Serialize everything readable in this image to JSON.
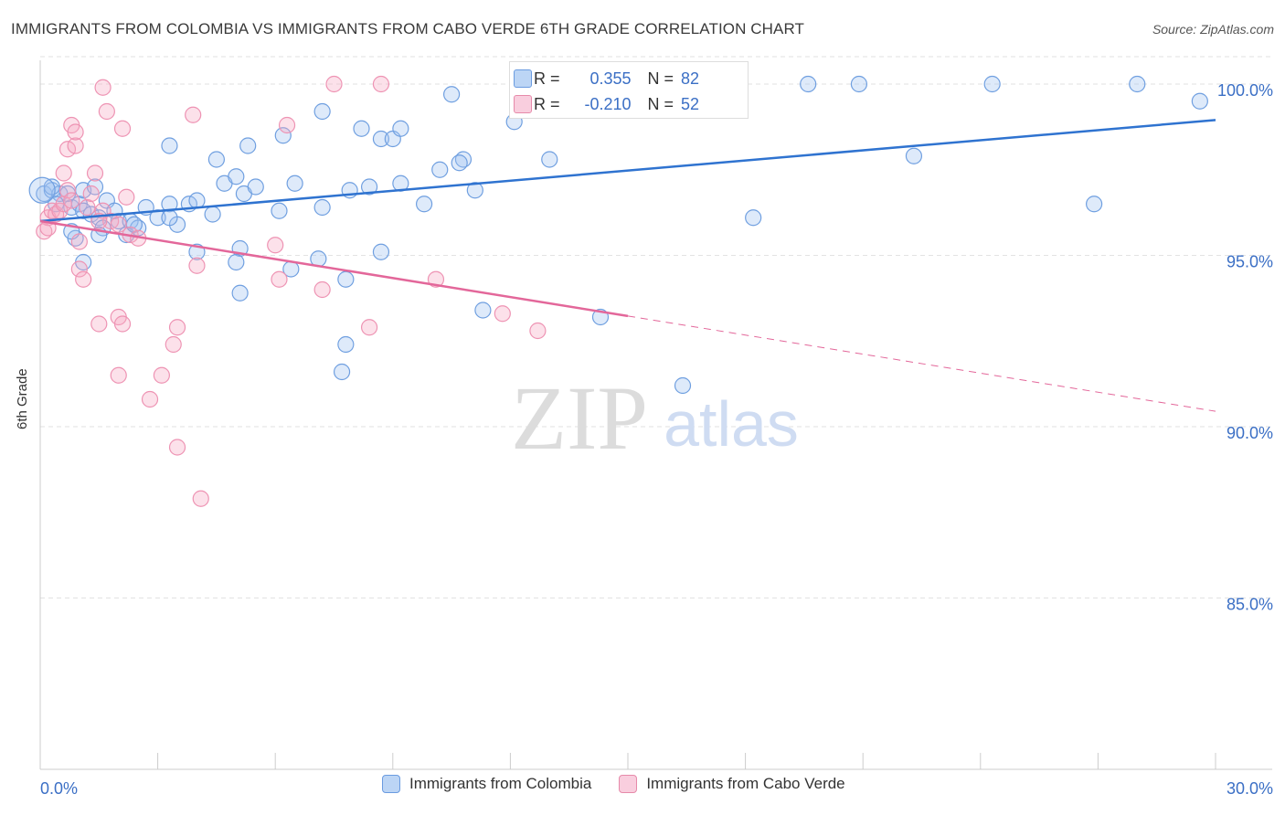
{
  "title": "IMMIGRANTS FROM COLOMBIA VS IMMIGRANTS FROM CABO VERDE 6TH GRADE CORRELATION CHART",
  "source": "Source: ZipAtlas.com",
  "watermark": {
    "zip": "ZIP",
    "atlas": "atlas"
  },
  "stats": [
    {
      "r_label": "R =",
      "r_value": "0.355",
      "n_label": "N =",
      "n_value": "82",
      "color": "#a9c8f0",
      "border": "#6a9be0"
    },
    {
      "r_label": "R =",
      "r_value": "-0.210",
      "n_label": "N =",
      "n_value": "52",
      "color": "#f7bfd2",
      "border": "#e68aaa"
    }
  ],
  "colors": {
    "colombia_fill": "rgba(160,195,240,0.35)",
    "colombia_stroke": "#6f9fe0",
    "colombia_line": "#2f73d0",
    "caboverde_fill": "rgba(245,170,195,0.35)",
    "caboverde_stroke": "#ee93b3",
    "caboverde_line": "#e3679a",
    "axis_text": "#3b6fc5",
    "grid": "#e2e2e2"
  },
  "chart_data": {
    "type": "scatter",
    "title": "IMMIGRANTS FROM COLOMBIA VS IMMIGRANTS FROM CABO VERDE 6TH GRADE CORRELATION CHART",
    "xlabel": "",
    "ylabel": "6th Grade",
    "xlim": [
      0,
      30
    ],
    "ylim": [
      80.0,
      100.8
    ],
    "x_tick_labels": [
      "0.0%",
      "30.0%"
    ],
    "y_ticks": [
      85.0,
      90.0,
      95.0,
      100.0
    ],
    "y_tick_labels": [
      "85.0%",
      "90.0%",
      "95.0%",
      "100.0%"
    ],
    "grid": true,
    "legend_position": "bottom",
    "series": [
      {
        "name": "Immigrants from Colombia",
        "trend": {
          "x": [
            0,
            30
          ],
          "y": [
            96.0,
            98.95
          ]
        },
        "points": [
          [
            0.1,
            96.8
          ],
          [
            0.3,
            96.9
          ],
          [
            0.5,
            96.8
          ],
          [
            0.4,
            96.5
          ],
          [
            0.8,
            96.4
          ],
          [
            1.0,
            96.5
          ],
          [
            1.1,
            96.3
          ],
          [
            0.9,
            95.5
          ],
          [
            1.3,
            96.2
          ],
          [
            1.5,
            96.1
          ],
          [
            1.6,
            95.8
          ],
          [
            1.7,
            96.6
          ],
          [
            2.0,
            96.0
          ],
          [
            2.3,
            96.0
          ],
          [
            2.5,
            95.8
          ],
          [
            2.7,
            96.4
          ],
          [
            3.0,
            96.1
          ],
          [
            3.3,
            96.5
          ],
          [
            3.5,
            95.9
          ],
          [
            3.8,
            96.5
          ],
          [
            4.0,
            96.6
          ],
          [
            4.4,
            96.2
          ],
          [
            4.7,
            97.1
          ],
          [
            5.0,
            97.3
          ],
          [
            5.2,
            96.8
          ],
          [
            5.5,
            97.0
          ],
          [
            6.1,
            96.3
          ],
          [
            6.5,
            97.1
          ],
          [
            7.2,
            96.4
          ],
          [
            7.9,
            96.9
          ],
          [
            8.4,
            97.0
          ],
          [
            9.2,
            97.1
          ],
          [
            9.8,
            96.5
          ],
          [
            11.1,
            96.9
          ],
          [
            10.8,
            97.8
          ],
          [
            13.0,
            97.8
          ],
          [
            3.3,
            98.2
          ],
          [
            5.3,
            98.2
          ],
          [
            4.5,
            97.8
          ],
          [
            6.2,
            98.5
          ],
          [
            8.2,
            98.7
          ],
          [
            8.7,
            98.4
          ],
          [
            9.0,
            98.4
          ],
          [
            9.2,
            98.7
          ],
          [
            10.2,
            97.5
          ],
          [
            10.7,
            97.7
          ],
          [
            7.2,
            99.2
          ],
          [
            10.5,
            99.7
          ],
          [
            12.1,
            98.9
          ],
          [
            13.9,
            100.0
          ],
          [
            19.6,
            100.0
          ],
          [
            20.9,
            100.0
          ],
          [
            24.3,
            100.0
          ],
          [
            28.0,
            100.0
          ],
          [
            29.6,
            99.5
          ],
          [
            22.3,
            97.9
          ],
          [
            26.9,
            96.5
          ],
          [
            18.2,
            96.1
          ],
          [
            1.1,
            96.9
          ],
          [
            1.4,
            97.0
          ],
          [
            0.8,
            95.7
          ],
          [
            1.5,
            95.6
          ],
          [
            2.2,
            95.6
          ],
          [
            2.4,
            95.9
          ],
          [
            4.0,
            95.1
          ],
          [
            5.1,
            95.2
          ],
          [
            8.7,
            95.1
          ],
          [
            7.1,
            94.9
          ],
          [
            6.4,
            94.6
          ],
          [
            7.8,
            94.3
          ],
          [
            1.1,
            94.8
          ],
          [
            5.0,
            94.8
          ],
          [
            5.1,
            93.9
          ],
          [
            11.3,
            93.4
          ],
          [
            14.3,
            93.2
          ],
          [
            7.8,
            92.4
          ],
          [
            7.7,
            91.6
          ],
          [
            16.4,
            91.2
          ],
          [
            0.7,
            96.8
          ],
          [
            1.9,
            96.3
          ],
          [
            3.3,
            96.1
          ],
          [
            0.3,
            97.0
          ]
        ]
      },
      {
        "name": "Immigrants from Cabo Verde",
        "trend": {
          "x": [
            0,
            15.0
          ],
          "y": [
            96.0,
            93.23
          ]
        },
        "trend_dashed": {
          "x": [
            15.0,
            30
          ],
          "y": [
            93.23,
            90.45
          ]
        },
        "points": [
          [
            0.1,
            95.7
          ],
          [
            0.2,
            96.1
          ],
          [
            0.3,
            96.3
          ],
          [
            0.4,
            96.2
          ],
          [
            0.5,
            96.3
          ],
          [
            0.6,
            96.5
          ],
          [
            0.7,
            96.9
          ],
          [
            0.8,
            96.6
          ],
          [
            0.2,
            95.8
          ],
          [
            0.6,
            97.4
          ],
          [
            0.7,
            98.1
          ],
          [
            0.9,
            98.2
          ],
          [
            0.8,
            98.8
          ],
          [
            0.9,
            98.6
          ],
          [
            1.2,
            96.4
          ],
          [
            1.3,
            96.8
          ],
          [
            1.4,
            97.4
          ],
          [
            1.6,
            96.3
          ],
          [
            1.8,
            96.0
          ],
          [
            2.0,
            95.9
          ],
          [
            2.3,
            95.6
          ],
          [
            2.5,
            95.5
          ],
          [
            2.2,
            96.7
          ],
          [
            2.1,
            98.7
          ],
          [
            1.7,
            99.2
          ],
          [
            1.6,
            99.9
          ],
          [
            3.9,
            99.1
          ],
          [
            6.3,
            98.8
          ],
          [
            7.5,
            100.0
          ],
          [
            8.7,
            100.0
          ],
          [
            1.0,
            95.4
          ],
          [
            1.0,
            94.6
          ],
          [
            1.1,
            94.3
          ],
          [
            6.0,
            95.3
          ],
          [
            6.1,
            94.3
          ],
          [
            4.0,
            94.7
          ],
          [
            7.2,
            94.0
          ],
          [
            10.1,
            94.3
          ],
          [
            2.0,
            93.2
          ],
          [
            2.1,
            93.0
          ],
          [
            1.5,
            93.0
          ],
          [
            3.5,
            92.9
          ],
          [
            3.4,
            92.4
          ],
          [
            8.4,
            92.9
          ],
          [
            12.7,
            92.8
          ],
          [
            11.8,
            93.3
          ],
          [
            2.0,
            91.5
          ],
          [
            3.1,
            91.5
          ],
          [
            2.8,
            90.8
          ],
          [
            3.5,
            89.4
          ],
          [
            4.1,
            87.9
          ],
          [
            1.5,
            96.0
          ]
        ]
      }
    ]
  },
  "legend": [
    {
      "label": "Immigrants from Colombia"
    },
    {
      "label": "Immigrants from Cabo Verde"
    }
  ]
}
